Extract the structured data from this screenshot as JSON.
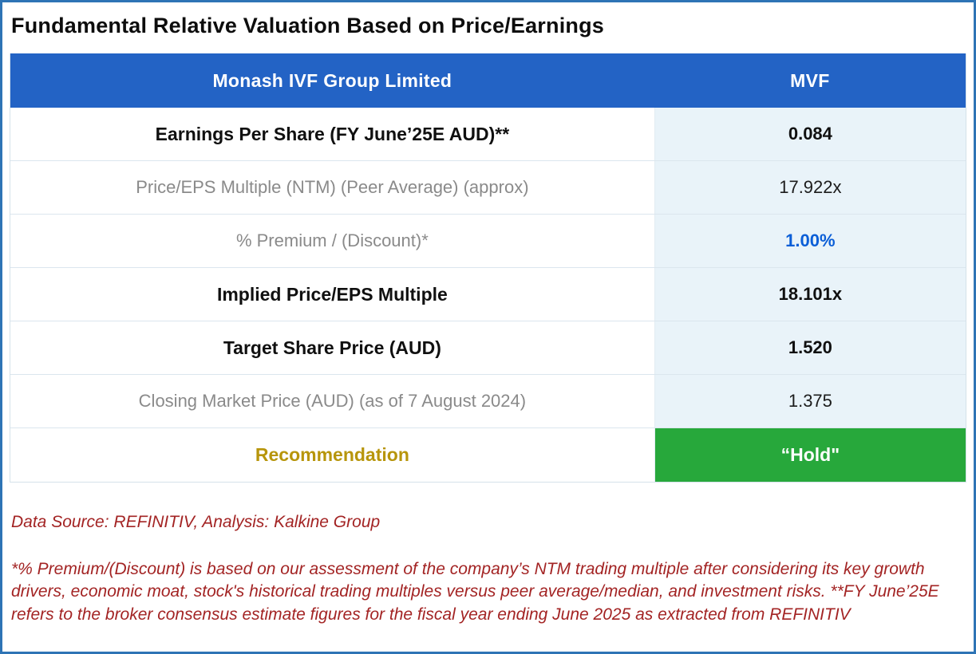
{
  "page": {
    "title": "Fundamental Relative Valuation Based on Price/Earnings"
  },
  "table": {
    "header": {
      "company": "Monash IVF Group Limited",
      "ticker": "MVF"
    },
    "rows": [
      {
        "label": "Earnings Per Share (FY June’25E AUD)**",
        "value": "0.084"
      },
      {
        "label": "Price/EPS Multiple (NTM) (Peer Average) (approx)",
        "value": "17.922x"
      },
      {
        "label": "% Premium / (Discount)*",
        "value": "1.00%"
      },
      {
        "label": "Implied Price/EPS Multiple",
        "value": "18.101x"
      },
      {
        "label": "Target Share Price (AUD)",
        "value": "1.520"
      },
      {
        "label": "Closing Market Price (AUD) (as of 7 August 2024)",
        "value": "1.375"
      },
      {
        "label": "Recommendation",
        "value": "“Hold\""
      }
    ]
  },
  "footer": {
    "source": "Data Source: REFINITIV, Analysis: Kalkine Group",
    "note": "*% Premium/(Discount) is based on our assessment of the company’s NTM trading multiple after considering its key growth drivers, economic moat, stock's historical trading multiples versus peer average/median, and investment risks. **FY June’25E refers to the broker consensus estimate figures for the fiscal year ending June 2025 as extracted from REFINITIV"
  },
  "colors": {
    "header_bg": "#2363c5",
    "value_bg": "#e9f3f9",
    "green_bg": "#27a83b",
    "gold_text": "#b7950b",
    "blue_value": "#0b5ed7",
    "red_text": "#a32424",
    "border_blue": "#2e74b5"
  }
}
